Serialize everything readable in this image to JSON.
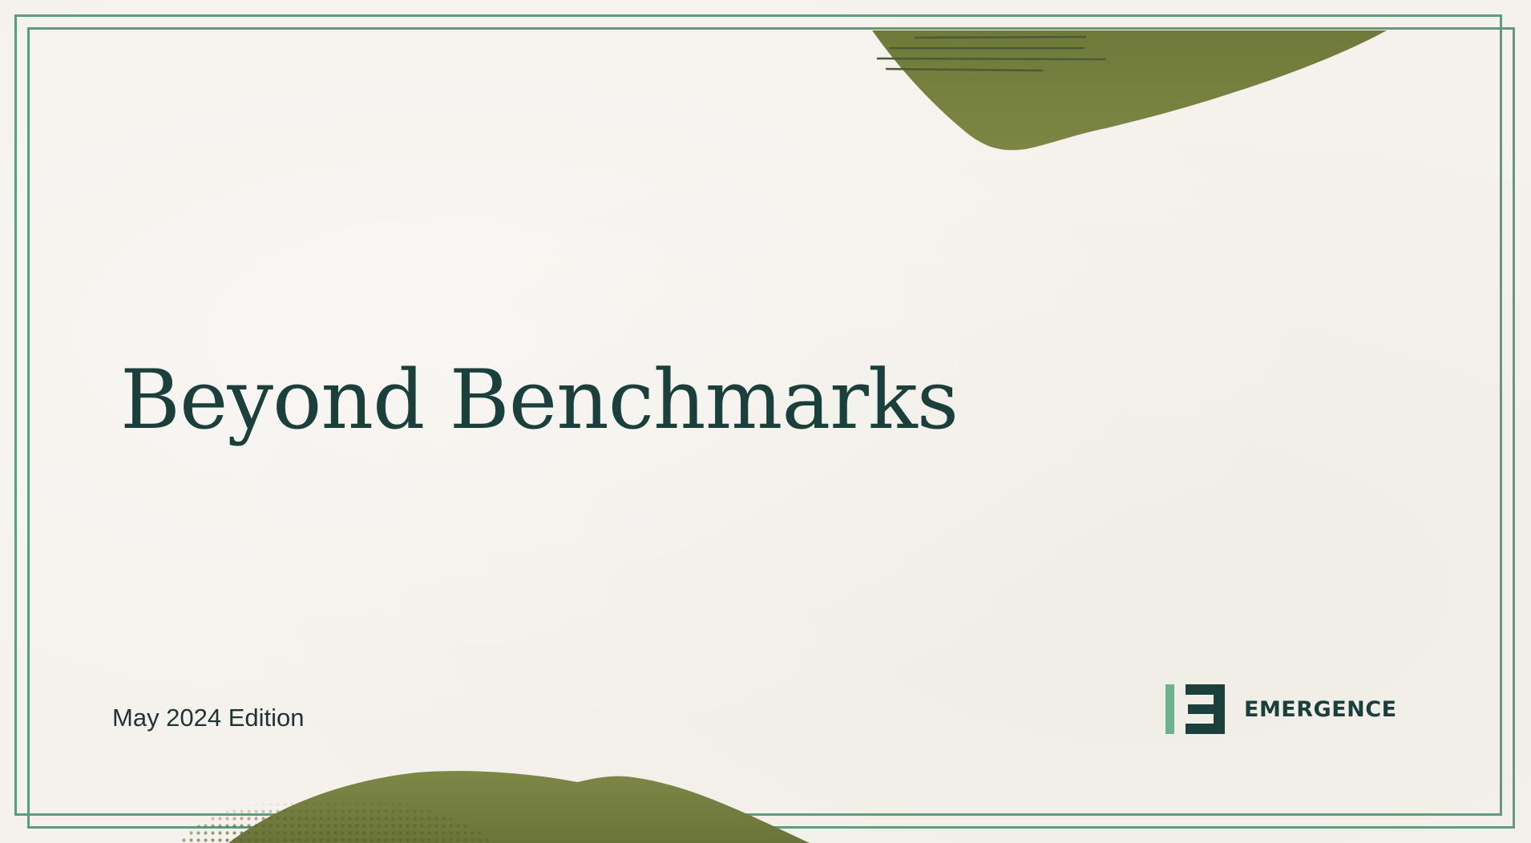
{
  "slide": {
    "title": "Beyond Benchmarks",
    "edition": "May 2024 Edition"
  },
  "brand": {
    "name": "EMERGENCE",
    "mark_icon": "emergence-logo-icon"
  },
  "colors": {
    "background": "#f5f2ed",
    "frame": "#5f9b7c",
    "title": "#1b3f3b",
    "olive_shape": "#76803f",
    "logo_dark": "#1b3f3b",
    "logo_light": "#6fb08e"
  }
}
